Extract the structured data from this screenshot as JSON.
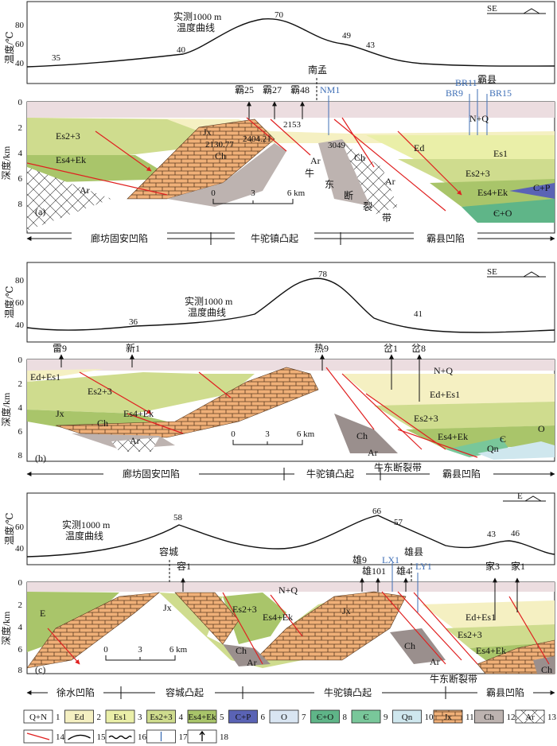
{
  "common": {
    "temp_axis_label": "温度/℃",
    "depth_axis_label": "深度/km",
    "curve_label_1": "实测1000 m",
    "curve_label_2": "温度曲线",
    "scale_ticks": [
      "0",
      "3",
      "6 km"
    ]
  },
  "panels": [
    {
      "tag": "(a)",
      "direction": "SE",
      "temp_ticks": [
        "80",
        "60",
        "40"
      ],
      "depth_ticks": [
        "0",
        "2",
        "4",
        "6",
        "8"
      ],
      "temp_values": [
        "35",
        "40",
        "70",
        "49",
        "43"
      ],
      "wells": [
        "霸25",
        "霸27",
        "霸48",
        "南孟",
        "NM1",
        "BR11",
        "BR9",
        "霸县",
        "BR15"
      ],
      "depth_values": [
        "2130.77",
        "2404.21",
        "2153",
        "3049"
      ],
      "strata": [
        "N+Q",
        "Es2+3",
        "Es4+Ek",
        "Ed",
        "Es1",
        "Es2+3",
        "Es4+Ek",
        "C+P",
        "Є+O",
        "Ar",
        "Ch",
        "Ar",
        "Ch",
        "Ar",
        "Jx"
      ],
      "fault_zone": [
        "牛",
        "东",
        "断",
        "裂",
        "带"
      ],
      "units": [
        "廊坊固安凹陷",
        "牛驼镇凸起",
        "霸县凹陷"
      ]
    },
    {
      "tag": "(b)",
      "direction": "SE",
      "temp_ticks": [
        "80",
        "60",
        "40"
      ],
      "depth_ticks": [
        "0",
        "2",
        "4",
        "6",
        "8"
      ],
      "temp_values": [
        "36",
        "78",
        "41"
      ],
      "wells": [
        "雷9",
        "新1",
        "热9",
        "岔1",
        "岔8"
      ],
      "strata": [
        "Ed+Es1",
        "Es2+3",
        "Es4+Ek",
        "N+Q",
        "Ed+Es1",
        "Es2+3",
        "Es4+Ek",
        "Є",
        "O",
        "Qn",
        "Ch",
        "Ar",
        "Ch",
        "Ar",
        "Jx"
      ],
      "fault_zone_label": "牛东断裂带",
      "units": [
        "廊坊固安凹陷",
        "牛驼镇凸起",
        "霸县凹陷"
      ]
    },
    {
      "tag": "(c)",
      "direction": "E",
      "temp_ticks": [
        "60",
        "40"
      ],
      "depth_ticks": [
        "0",
        "2",
        "4",
        "6",
        "8"
      ],
      "temp_values": [
        "58",
        "66",
        "57",
        "43",
        "46"
      ],
      "wells": [
        "容城",
        "容1",
        "雄9",
        "雄101",
        "LX1",
        "雄县",
        "雄4",
        "LY1",
        "家3",
        "家1"
      ],
      "strata": [
        "E",
        "N+Q",
        "Es2+3",
        "Es4+Ek",
        "Ed+Es1",
        "Es2+3",
        "Es4+Ek",
        "Ch",
        "Ar",
        "Ch",
        "Ar",
        "Ch",
        "Jx",
        "Jx"
      ],
      "fault_zone_label": "牛东断裂带",
      "units": [
        "徐水凹陷",
        "容城凸起",
        "牛驼镇凸起",
        "霸县凹陷"
      ]
    }
  ],
  "legend": [
    {
      "label": "Q+N",
      "num": "1",
      "color": "#ffffff"
    },
    {
      "label": "Ed",
      "num": "2",
      "color": "#f5f0c2"
    },
    {
      "label": "Es1",
      "num": "3",
      "color": "#eaefa8"
    },
    {
      "label": "Es2+3",
      "num": "4",
      "color": "#cfdc8e"
    },
    {
      "label": "Es4+Ek",
      "num": "5",
      "color": "#a9c56a"
    },
    {
      "label": "C+P",
      "num": "6",
      "color": "#5a63b5"
    },
    {
      "label": "O",
      "num": "7",
      "color": "#d9e5f2"
    },
    {
      "label": "Є+O",
      "num": "8",
      "color": "#5fb588"
    },
    {
      "label": "Є",
      "num": "9",
      "color": "#79c79a"
    },
    {
      "label": "Qn",
      "num": "10",
      "color": "#cfe7ee"
    },
    {
      "label": "Jx",
      "num": "11",
      "color": "#f0b078"
    },
    {
      "label": "Ch",
      "num": "12",
      "color": "#bdb3b0"
    },
    {
      "label": "Ar",
      "num": "13",
      "color": "#ffffff"
    },
    {
      "label": "",
      "num": "14",
      "color": "#e02020"
    },
    {
      "label": "",
      "num": "15",
      "color": "#000000"
    },
    {
      "label": "",
      "num": "16",
      "color": "#000000"
    },
    {
      "label": "",
      "num": "17",
      "color": "#3f6fb6"
    },
    {
      "label": "",
      "num": "18",
      "color": "#000000"
    }
  ]
}
